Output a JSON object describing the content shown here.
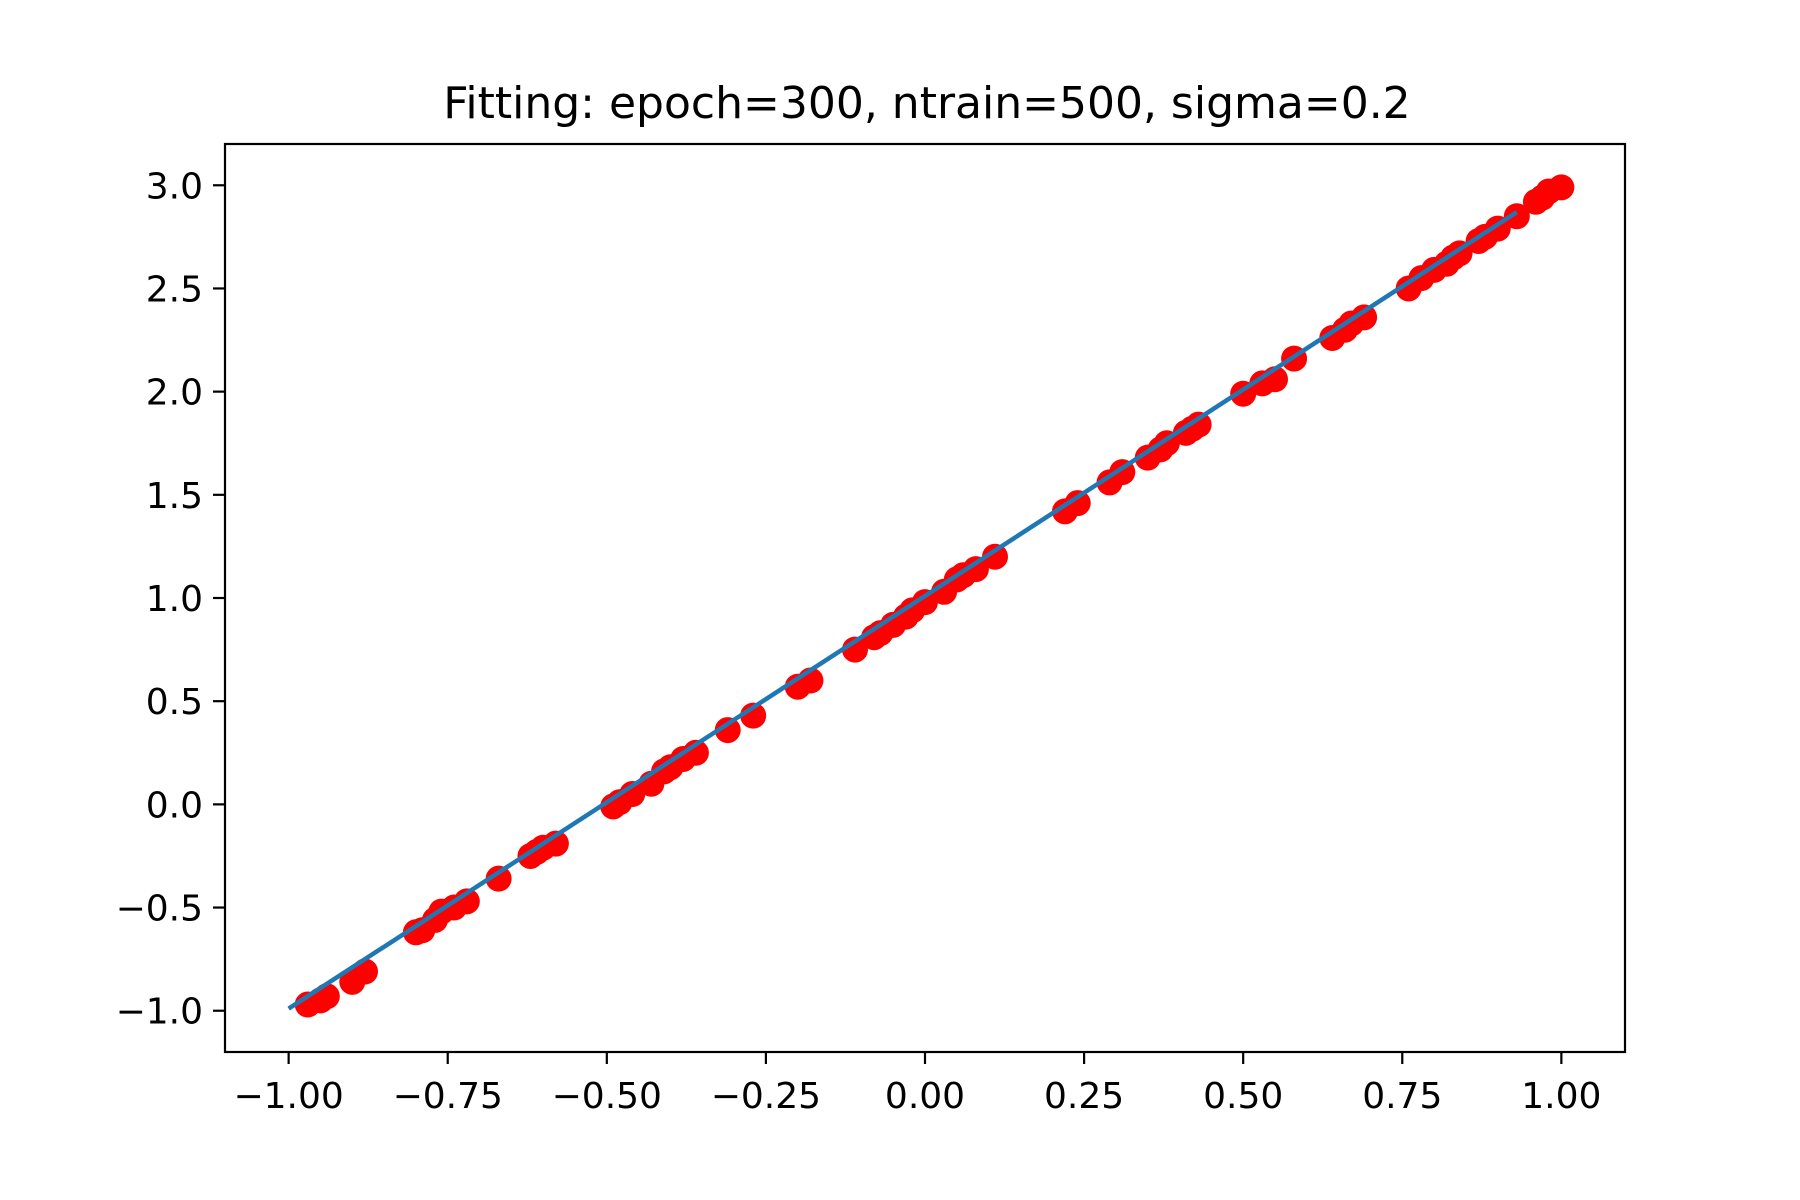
{
  "chart_data": {
    "type": "scatter",
    "title": "Fitting: epoch=300, ntrain=500, sigma=0.2",
    "xlabel": "",
    "ylabel": "",
    "xlim": [
      -1.1,
      1.1
    ],
    "ylim": [
      -1.2,
      3.2
    ],
    "grid": false,
    "x_ticks": [
      -1.0,
      -0.75,
      -0.5,
      -0.25,
      0.0,
      0.25,
      0.5,
      0.75,
      1.0
    ],
    "x_tick_labels": [
      "−1.00",
      "−0.75",
      "−0.50",
      "−0.25",
      "0.00",
      "0.25",
      "0.50",
      "0.75",
      "1.00"
    ],
    "y_ticks": [
      -1.0,
      -0.5,
      0.0,
      0.5,
      1.0,
      1.5,
      2.0,
      2.5,
      3.0
    ],
    "y_tick_labels": [
      "−1.0",
      "−0.5",
      "0.0",
      "0.5",
      "1.0",
      "1.5",
      "2.0",
      "2.5",
      "3.0"
    ],
    "colors": {
      "points": "#ff0000",
      "line": "#1f77b4"
    },
    "series": [
      {
        "type": "scatter",
        "x": [
          -0.97,
          -0.95,
          -0.94,
          -0.9,
          -0.88,
          -0.8,
          -0.79,
          -0.77,
          -0.76,
          -0.74,
          -0.72,
          -0.67,
          -0.62,
          -0.61,
          -0.6,
          -0.58,
          -0.49,
          -0.48,
          -0.46,
          -0.43,
          -0.41,
          -0.4,
          -0.38,
          -0.36,
          -0.31,
          -0.27,
          -0.2,
          -0.18,
          -0.11,
          -0.08,
          -0.07,
          -0.05,
          -0.03,
          -0.02,
          0.0,
          0.03,
          0.05,
          0.06,
          0.08,
          0.11,
          0.22,
          0.24,
          0.29,
          0.31,
          0.35,
          0.37,
          0.38,
          0.41,
          0.42,
          0.43,
          0.5,
          0.53,
          0.55,
          0.58,
          0.64,
          0.66,
          0.67,
          0.69,
          0.76,
          0.78,
          0.8,
          0.82,
          0.83,
          0.84,
          0.87,
          0.88,
          0.9,
          0.93,
          0.96,
          0.97,
          0.98,
          1.0
        ],
        "y": [
          -0.97,
          -0.95,
          -0.93,
          -0.86,
          -0.81,
          -0.62,
          -0.61,
          -0.56,
          -0.52,
          -0.5,
          -0.47,
          -0.36,
          -0.25,
          -0.23,
          -0.21,
          -0.19,
          -0.01,
          0.01,
          0.05,
          0.1,
          0.16,
          0.18,
          0.22,
          0.25,
          0.36,
          0.43,
          0.57,
          0.6,
          0.75,
          0.81,
          0.83,
          0.87,
          0.91,
          0.94,
          0.98,
          1.03,
          1.09,
          1.11,
          1.14,
          1.2,
          1.42,
          1.46,
          1.56,
          1.61,
          1.68,
          1.72,
          1.75,
          1.8,
          1.82,
          1.84,
          1.99,
          2.04,
          2.06,
          2.16,
          2.26,
          2.3,
          2.33,
          2.36,
          2.5,
          2.55,
          2.59,
          2.62,
          2.65,
          2.67,
          2.73,
          2.75,
          2.79,
          2.85,
          2.92,
          2.94,
          2.97,
          2.99
        ]
      },
      {
        "type": "line",
        "x": [
          -1.0,
          0.93
        ],
        "y": [
          -0.99,
          2.87
        ]
      }
    ]
  }
}
